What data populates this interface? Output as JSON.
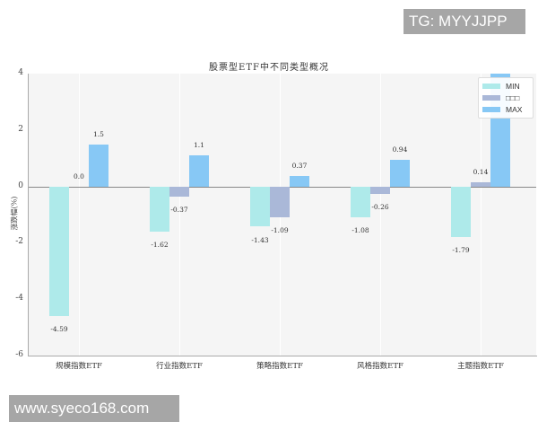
{
  "watermarks": {
    "top": "TG: MYYJJPP",
    "bottom": "www.syeco168.com"
  },
  "colors": {
    "min": "#aeeaea",
    "median": "#aab8d8",
    "max": "#87c8f5",
    "plot_bg": "#f5f5f5"
  },
  "chart_data": {
    "type": "bar",
    "title": "股票型ETF中不同类型概况",
    "xlabel": "",
    "ylabel": "涨跌幅(%)",
    "ylim": [
      -6,
      4
    ],
    "yticks": [
      "4",
      "2",
      "0",
      "-2",
      "-4",
      "-6"
    ],
    "categories": [
      "规模指数ETF",
      "行业指数ETF",
      "策略指数ETF",
      "风格指数ETF",
      "主题指数ETF"
    ],
    "series": [
      {
        "name": "MIN",
        "values": [
          -4.59,
          -1.62,
          -1.43,
          -1.08,
          -1.79
        ],
        "labels": [
          "-4.59",
          "-1.62",
          "-1.43",
          "-1.08",
          "-1.79"
        ]
      },
      {
        "name": "□□□",
        "values": [
          0.0,
          -0.37,
          -1.09,
          -0.26,
          0.14
        ],
        "labels": [
          "0.0",
          "-0.37",
          "-1.09",
          "-0.26",
          "0.14"
        ]
      },
      {
        "name": "MAX",
        "values": [
          1.5,
          1.1,
          0.37,
          0.94,
          4.0
        ],
        "labels": [
          "1.5",
          "1.1",
          "0.37",
          "0.94",
          ""
        ]
      }
    ],
    "legend_position": "upper right",
    "grid": "vertical only",
    "annotations": [
      "MAX bar for 主题指数ETF exceeds the 4% axis limit; its label is hidden behind the legend"
    ]
  }
}
